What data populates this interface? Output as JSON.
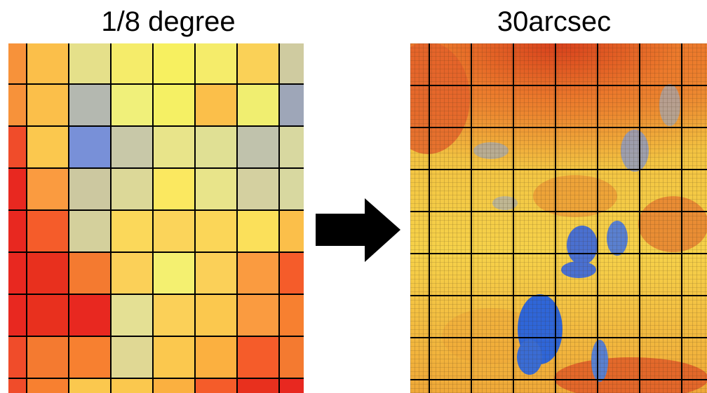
{
  "left": {
    "title": "1/8 degree"
  },
  "right": {
    "title": "30arcsec"
  }
}
